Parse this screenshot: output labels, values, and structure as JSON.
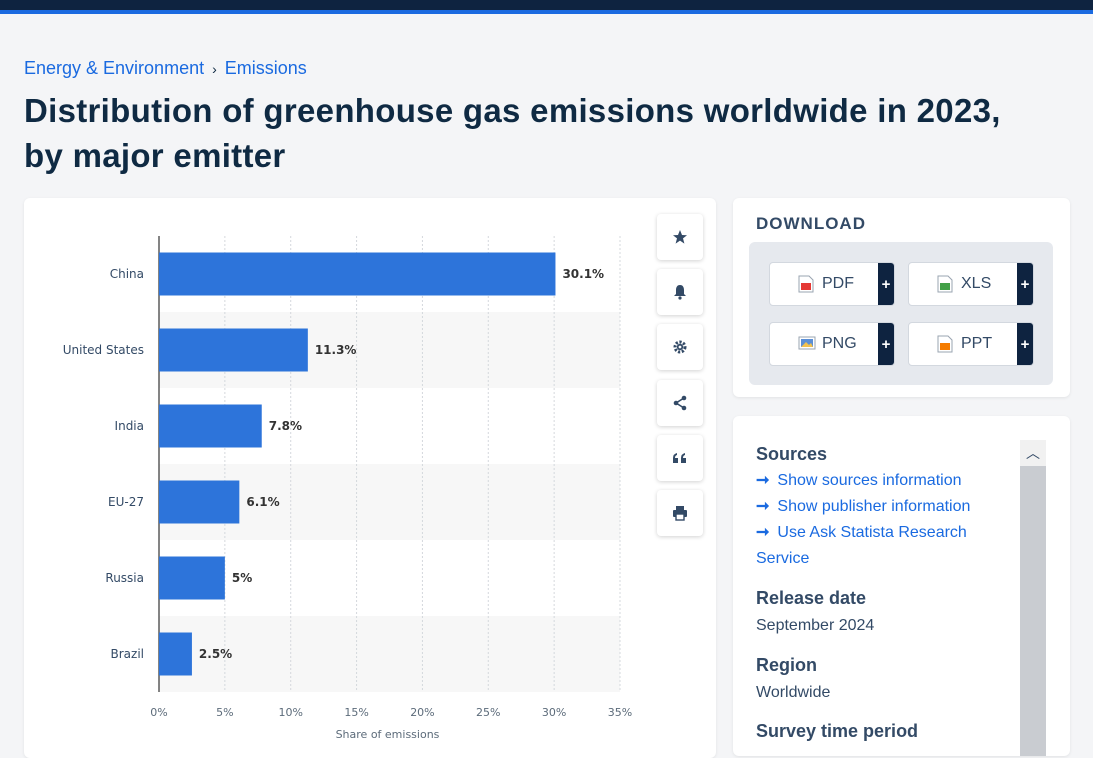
{
  "breadcrumb": {
    "item1": "Energy & Environment",
    "separator": "›",
    "item2": "Emissions"
  },
  "page_title": "Distribution of greenhouse gas emissions worldwide in 2023, by major emitter",
  "toolbar": {
    "icons": [
      "star-icon",
      "bell-icon",
      "gear-icon",
      "share-icon",
      "quote-icon",
      "print-icon"
    ]
  },
  "download": {
    "heading": "DOWNLOAD",
    "buttons": [
      {
        "label": "PDF",
        "plus": "+",
        "color": "#e53935"
      },
      {
        "label": "XLS",
        "plus": "+",
        "color": "#43a047"
      },
      {
        "label": "PNG",
        "plus": "+",
        "color": "#5b8fd6"
      },
      {
        "label": "PPT",
        "plus": "+",
        "color": "#f57c00"
      }
    ]
  },
  "info": {
    "sources_heading": "Sources",
    "links": [
      "Show sources information",
      "Show publisher information",
      "Use Ask Statista Research Service"
    ],
    "link_arrow": "➞",
    "release_heading": "Release date",
    "release_value": "September 2024",
    "region_heading": "Region",
    "region_value": "Worldwide",
    "survey_heading": "Survey time period"
  },
  "chart_data": {
    "type": "bar",
    "orientation": "horizontal",
    "categories": [
      "China",
      "United States",
      "India",
      "EU-27",
      "Russia",
      "Brazil"
    ],
    "values": [
      30.1,
      11.3,
      7.8,
      6.1,
      5,
      2.5
    ],
    "data_labels": [
      "30.1%",
      "11.3%",
      "7.8%",
      "6.1%",
      "5%",
      "2.5%"
    ],
    "xlabel": "Share of emissions",
    "xticks": [
      "0%",
      "5%",
      "10%",
      "15%",
      "20%",
      "25%",
      "30%",
      "35%"
    ],
    "xlim": [
      0,
      35
    ],
    "grid": true,
    "colors": {
      "bar": "#2d74da",
      "band": "#f7f7f7"
    }
  }
}
